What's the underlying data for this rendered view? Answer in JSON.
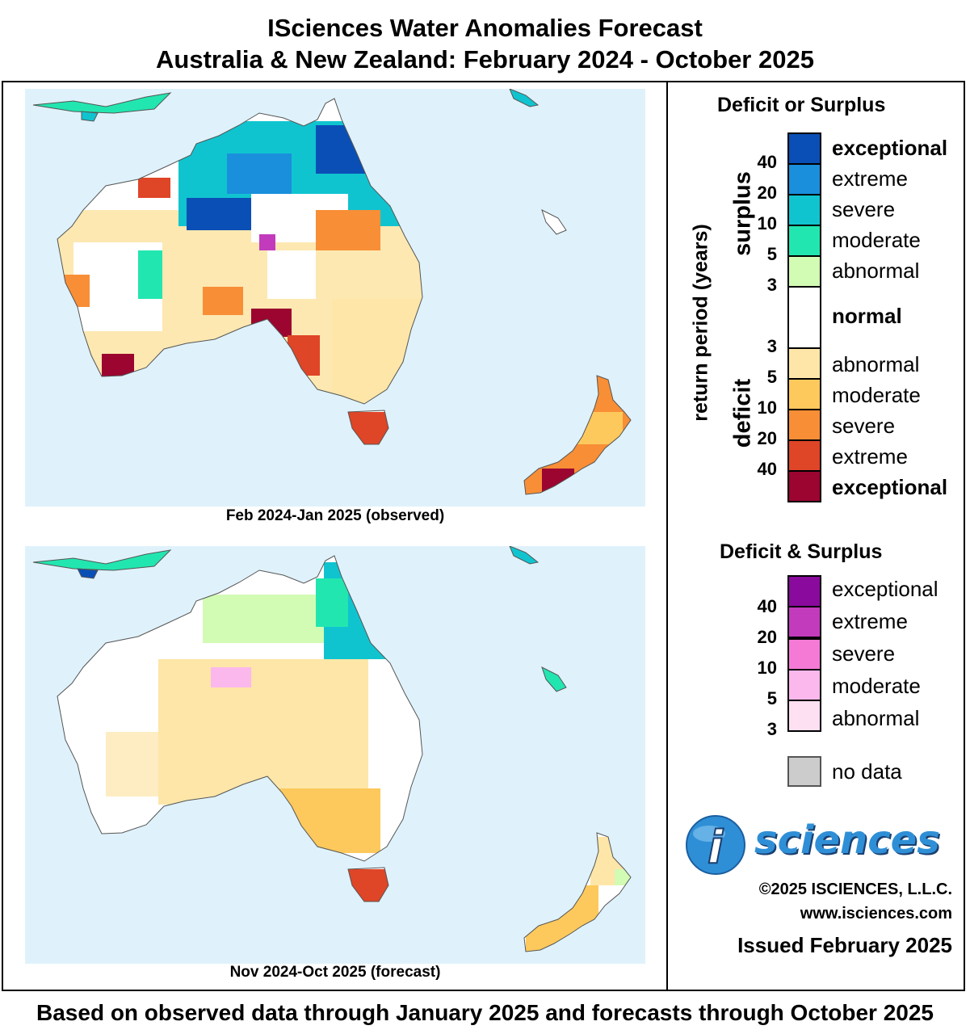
{
  "title_line1": "ISciences Water Anomalies Forecast",
  "title_line2": "Australia & New Zealand: February 2024 - October 2025",
  "maps": [
    {
      "caption": "Feb 2024-Jan 2025 (observed)"
    },
    {
      "caption": "Nov 2024-Oct 2025 (forecast)"
    }
  ],
  "legend": {
    "title1": "Deficit or Surplus",
    "axis_label": "return period (years)",
    "surplus_label": "surplus",
    "deficit_label": "deficit",
    "surplus_ticks": [
      "40",
      "20",
      "10",
      "5",
      "3"
    ],
    "deficit_ticks": [
      "3",
      "5",
      "10",
      "20",
      "40"
    ],
    "surplus_classes": [
      {
        "label": "exceptional",
        "color": "#0a4fb5"
      },
      {
        "label": "extreme",
        "color": "#1a8fdc"
      },
      {
        "label": "severe",
        "color": "#10c4cf"
      },
      {
        "label": "moderate",
        "color": "#22e6b0"
      },
      {
        "label": "abnormal",
        "color": "#d2fbb4"
      }
    ],
    "normal": {
      "label": "normal",
      "color": "#ffffff"
    },
    "deficit_classes": [
      {
        "label": "abnormal",
        "color": "#fde6a8"
      },
      {
        "label": "moderate",
        "color": "#fdc95c"
      },
      {
        "label": "severe",
        "color": "#f88e36"
      },
      {
        "label": "extreme",
        "color": "#df4527"
      },
      {
        "label": "exceptional",
        "color": "#9b0530"
      }
    ],
    "title2": "Deficit & Surplus",
    "both_ticks": [
      "40",
      "20",
      "10",
      "5",
      "3"
    ],
    "both_classes": [
      {
        "label": "exceptional",
        "color": "#8a0a9e"
      },
      {
        "label": "extreme",
        "color": "#c23bbd"
      },
      {
        "label": "severe",
        "color": "#f47ad6"
      },
      {
        "label": "moderate",
        "color": "#fbb8ec"
      },
      {
        "label": "abnormal",
        "color": "#fde0f1"
      }
    ],
    "no_data": {
      "label": "no data",
      "color": "#cccccc"
    }
  },
  "brand": {
    "logo_text": "sciences",
    "copyright": "©2025 ISCIENCES, L.L.C.",
    "website": "www.isciences.com",
    "issued": "Issued February 2025"
  },
  "footer": "Based on observed data through January 2025 and forecasts through October 2025",
  "colors": {
    "ocean": "#dff2fb",
    "land_normal": "#ffffff",
    "coastline": "#555555"
  }
}
